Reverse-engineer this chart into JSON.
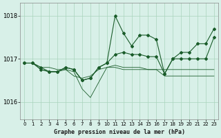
{
  "background_color": "#d8f0e8",
  "grid_color": "#aad4bc",
  "line_color": "#1a5c2a",
  "marker_color": "#1a5c2a",
  "title": "Graphe pression niveau de la mer (hPa)",
  "ylim": [
    1015.6,
    1018.3
  ],
  "yticks": [
    1016,
    1017,
    1018
  ],
  "xlim": [
    -0.5,
    23.5
  ],
  "xticks": [
    0,
    1,
    2,
    3,
    4,
    5,
    6,
    7,
    8,
    9,
    10,
    11,
    12,
    13,
    14,
    15,
    16,
    17,
    18,
    19,
    20,
    21,
    22,
    23
  ],
  "series": [
    [
      1016.9,
      1016.9,
      1016.8,
      1016.8,
      1016.75,
      1016.75,
      1016.7,
      1016.3,
      1016.1,
      1016.45,
      1016.8,
      1016.8,
      1016.75,
      1016.75,
      1016.75,
      1016.75,
      1016.75,
      1016.75,
      1016.75,
      1016.75,
      1016.75,
      1016.75,
      1016.75,
      1016.75
    ],
    [
      1016.9,
      1016.9,
      1016.75,
      1016.7,
      1016.7,
      1016.75,
      1016.6,
      1016.55,
      1016.6,
      1016.75,
      1016.8,
      1016.85,
      1016.8,
      1016.8,
      1016.8,
      1016.75,
      1016.75,
      1016.6,
      1016.6,
      1016.6,
      1016.6,
      1016.6,
      1016.6,
      1016.6
    ],
    [
      1016.9,
      1016.9,
      1016.75,
      1016.7,
      1016.7,
      1016.8,
      1016.75,
      1016.5,
      1016.55,
      1016.8,
      1016.9,
      1018.0,
      1017.6,
      1017.3,
      1017.55,
      1017.55,
      1017.45,
      1016.65,
      1017.0,
      1017.15,
      1017.15,
      1017.35,
      1017.35,
      1017.7
    ],
    [
      1016.9,
      1016.9,
      1016.8,
      1016.7,
      1016.7,
      1016.8,
      1016.75,
      1016.5,
      1016.55,
      1016.8,
      1016.9,
      1017.1,
      1017.15,
      1017.1,
      1017.1,
      1017.05,
      1017.05,
      1016.65,
      1017.0,
      1017.0,
      1017.0,
      1017.0,
      1017.0,
      1017.5
    ]
  ]
}
